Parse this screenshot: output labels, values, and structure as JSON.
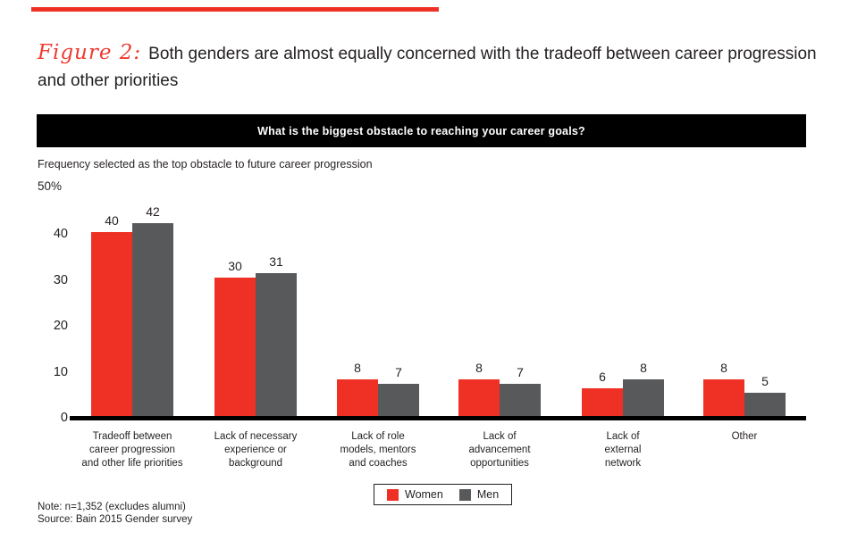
{
  "page": {
    "figure_label": "Figure 2:",
    "title_line1": "Both genders are almost equally concerned with the tradeoff between career progression",
    "title_line2": "and other priorities",
    "note": "Note: n=1,352 (excludes alumni)",
    "source": "Source: Bain 2015 Gender survey"
  },
  "banner": {
    "question": "What is the biggest obstacle to reaching your career goals?"
  },
  "colors": {
    "women": "#ee3124",
    "men": "#58595b",
    "banner_bg": "#000000",
    "top_rule": "#ee3124",
    "figure_label": "#ee3a30"
  },
  "chart_data": {
    "type": "bar",
    "subtitle": "Frequency selected as the top obstacle to future career progression",
    "y_axis": {
      "top_label": "50%",
      "ticks": [
        40,
        30,
        20,
        10,
        0
      ],
      "ylim": [
        0,
        50
      ]
    },
    "categories": [
      [
        "Tradeoff between",
        "career progression",
        "and other life priorities"
      ],
      [
        "Lack of necessary",
        "experience or",
        "background"
      ],
      [
        "Lack of role",
        "models, mentors",
        "and coaches"
      ],
      [
        "Lack of",
        "advancement",
        "opportunities"
      ],
      [
        "Lack of",
        "external",
        "network"
      ],
      [
        "Other"
      ]
    ],
    "series": [
      {
        "name": "Women",
        "color_key": "women",
        "values": [
          40,
          30,
          8,
          8,
          6,
          8
        ]
      },
      {
        "name": "Men",
        "color_key": "men",
        "values": [
          42,
          31,
          7,
          7,
          8,
          5
        ]
      }
    ],
    "legend_position": "bottom-center",
    "grid": false
  }
}
